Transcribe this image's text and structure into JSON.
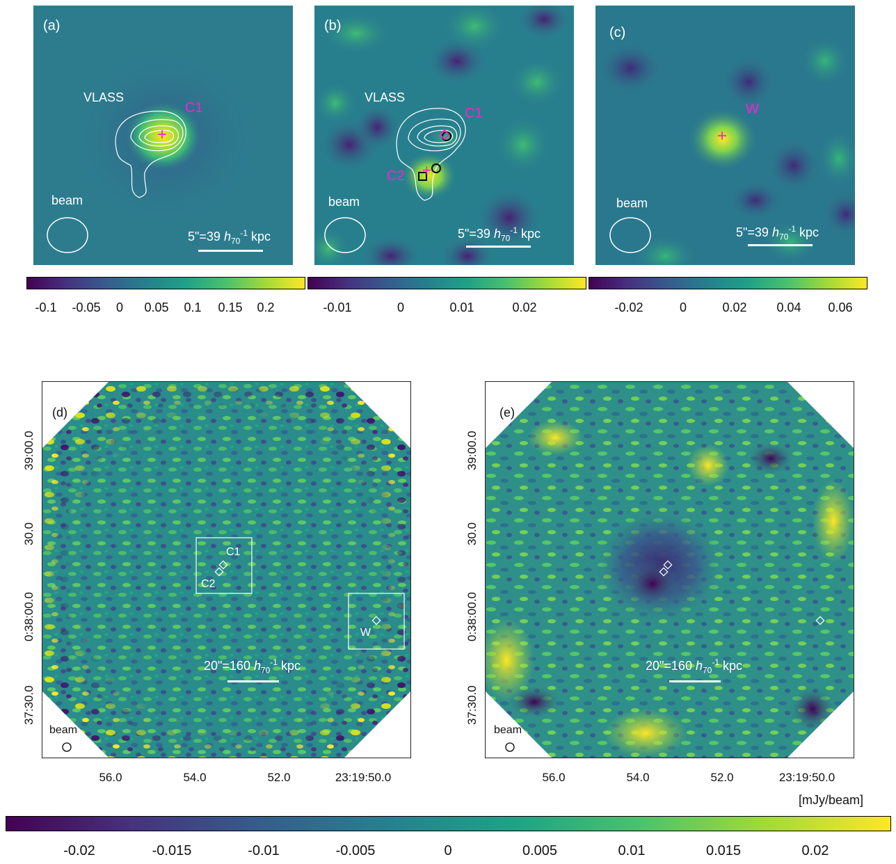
{
  "colors": {
    "viridis": [
      "#440154",
      "#46327e",
      "#365c8d",
      "#277f8e",
      "#1fa187",
      "#4ac16d",
      "#a0da39",
      "#fde725"
    ],
    "marker": "#ff1fd2",
    "contour": "#ffffff"
  },
  "top_panels": [
    {
      "label": "(a)",
      "source_labels": [
        "C1"
      ],
      "vlass": "VLASS",
      "beam": "beam",
      "scale": "5\"=39",
      "ticks": [
        "-0.1",
        "-0.05",
        "0",
        "0.05",
        "0.1",
        "0.15",
        "0.2"
      ]
    },
    {
      "label": "(b)",
      "source_labels": [
        "C1",
        "C2"
      ],
      "vlass": "VLASS",
      "beam": "beam",
      "scale": "5\"=39",
      "ticks": [
        "-0.01",
        "0",
        "0.01",
        "0.02"
      ]
    },
    {
      "label": "(c)",
      "source_labels": [
        "W"
      ],
      "vlass": "",
      "beam": "beam",
      "scale": "5\"=39",
      "ticks": [
        "-0.02",
        "0",
        "0.02",
        "0.04",
        "0.06"
      ]
    }
  ],
  "scale_unit": {
    "h": "h",
    "sub": "70",
    "sup": "-1",
    "kpc": "kpc"
  },
  "bottom_panels": [
    {
      "label": "(d)",
      "boxes": [
        "C1",
        "C2",
        "W"
      ],
      "beam": "beam",
      "scale": "20\"=160"
    },
    {
      "label": "(e)",
      "beam": "beam",
      "scale": "20\"=160"
    }
  ],
  "axes": {
    "x_ticks": [
      "56.0",
      "54.0",
      "52.0",
      "23:19:50.0"
    ],
    "y_ticks": [
      "39:00.0",
      "30.0",
      "0:38:00.0",
      "37:30.0"
    ]
  },
  "bottom_colorbar": {
    "unit": "[mJy/beam]",
    "ticks": [
      "-0.02",
      "-0.015",
      "-0.01",
      "-0.005",
      "0",
      "0.005",
      "0.01",
      "0.015",
      "0.02"
    ]
  }
}
